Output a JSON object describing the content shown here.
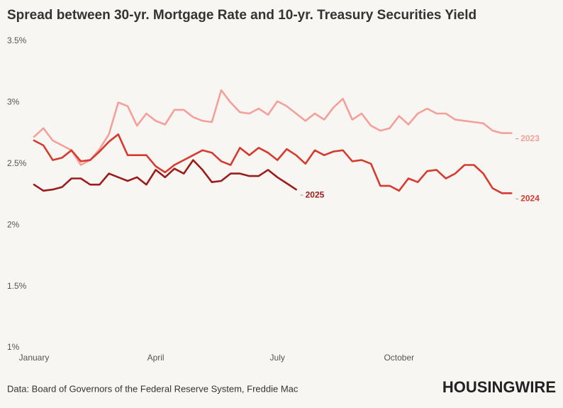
{
  "chart_data": {
    "type": "line",
    "title": "Spread between 30-yr. Mortgage Rate and 10-yr. Treasury Securities Yield",
    "source": "Data: Board of Governors of the Federal Reserve System, Freddie Mac",
    "logo": "HOUSINGWIRE",
    "categories": [
      "January",
      null,
      null,
      null,
      null,
      null,
      null,
      null,
      null,
      null,
      null,
      null,
      null,
      "April",
      null,
      null,
      null,
      null,
      null,
      null,
      null,
      null,
      null,
      null,
      null,
      null,
      "July",
      null,
      null,
      null,
      null,
      null,
      null,
      null,
      null,
      null,
      null,
      null,
      null,
      "October",
      null,
      null,
      null,
      null,
      null,
      null,
      null,
      null,
      null,
      null,
      null,
      null
    ],
    "ylim": [
      1,
      3.5
    ],
    "yticks": [
      {
        "value": 1,
        "label": "1%"
      },
      {
        "value": 1.5,
        "label": "1.5%"
      },
      {
        "value": 2,
        "label": "2%"
      },
      {
        "value": 2.5,
        "label": "2.5%"
      },
      {
        "value": 3,
        "label": "3%"
      },
      {
        "value": 3.5,
        "label": "3.5%"
      }
    ],
    "grid": false,
    "series": [
      {
        "name": "2023",
        "color": "#f4a09a",
        "values": [
          2.72,
          2.79,
          2.69,
          2.65,
          2.61,
          2.49,
          2.53,
          2.62,
          2.74,
          3.0,
          2.97,
          2.81,
          2.91,
          2.85,
          2.82,
          2.94,
          2.94,
          2.88,
          2.85,
          2.84,
          3.1,
          3.0,
          2.92,
          2.91,
          2.95,
          2.9,
          3.01,
          2.97,
          2.91,
          2.85,
          2.91,
          2.86,
          2.96,
          3.03,
          2.86,
          2.91,
          2.81,
          2.77,
          2.79,
          2.89,
          2.82,
          2.91,
          2.95,
          2.91,
          2.91,
          2.86,
          2.85,
          2.84,
          2.83,
          2.77,
          2.75,
          2.75
        ]
      },
      {
        "name": "2024",
        "color": "#d63b30",
        "values": [
          2.69,
          2.65,
          2.53,
          2.55,
          2.61,
          2.52,
          2.53,
          2.6,
          2.68,
          2.74,
          2.57,
          2.57,
          2.57,
          2.48,
          2.43,
          2.49,
          2.53,
          2.57,
          2.61,
          2.59,
          2.52,
          2.49,
          2.63,
          2.57,
          2.63,
          2.59,
          2.53,
          2.62,
          2.57,
          2.5,
          2.61,
          2.57,
          2.6,
          2.61,
          2.52,
          2.53,
          2.5,
          2.32,
          2.32,
          2.28,
          2.38,
          2.35,
          2.44,
          2.45,
          2.38,
          2.42,
          2.49,
          2.49,
          2.42,
          2.3,
          2.26,
          2.26
        ]
      },
      {
        "name": "2025",
        "color": "#9b1c1c",
        "values": [
          2.33,
          2.28,
          2.29,
          2.31,
          2.38,
          2.38,
          2.33,
          2.33,
          2.42,
          2.39,
          2.36,
          2.39,
          2.33,
          2.45,
          2.39,
          2.46,
          2.42,
          2.53,
          2.45,
          2.35,
          2.36,
          2.42,
          2.42,
          2.4,
          2.4,
          2.45,
          2.39,
          2.34,
          2.29,
          null,
          null,
          null,
          null,
          null,
          null,
          null,
          null,
          null,
          null,
          null,
          null,
          null,
          null,
          null,
          null,
          null,
          null,
          null,
          null,
          null,
          null,
          null
        ]
      }
    ]
  }
}
